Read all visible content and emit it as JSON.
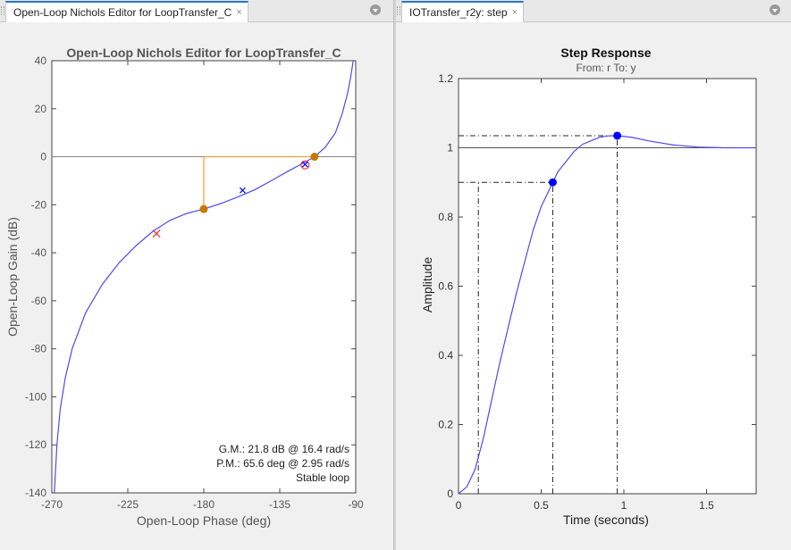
{
  "tabs": {
    "left_label": "Open-Loop Nichols Editor for LoopTransfer_C",
    "right_label": "IOTransfer_r2y: step",
    "close_glyph": "×"
  },
  "nichols": {
    "title": "Open-Loop Nichols Editor for LoopTransfer_C",
    "xlabel": "Open-Loop Phase (deg)",
    "ylabel": "Open-Loop Gain (dB)",
    "gm_text": "G.M.: 21.8 dB @ 16.4 rad/s",
    "pm_text": "P.M.: 65.6 deg @ 2.95 rad/s",
    "stable_text": "Stable loop"
  },
  "step": {
    "title": "Step Response",
    "subtitle": "From: r  To: y",
    "xlabel": "Time (seconds)",
    "ylabel": "Amplitude"
  },
  "colors": {
    "curve": "#4b4bf0",
    "margin": "#f0a030",
    "marker_orange": "#c87800",
    "pole_red": "#ff3030",
    "marker_blue": "#0000ff"
  },
  "chart_data": [
    {
      "type": "line",
      "name": "nichols",
      "xlim": [
        -270,
        -90
      ],
      "ylim": [
        -140,
        40
      ],
      "xticks": [
        -270,
        -225,
        -180,
        -135,
        -90
      ],
      "yticks": [
        -140,
        -120,
        -100,
        -80,
        -60,
        -40,
        -20,
        0,
        20,
        40
      ],
      "curve": [
        [
          -268.5,
          -140
        ],
        [
          -267,
          -120
        ],
        [
          -265,
          -105
        ],
        [
          -262,
          -92
        ],
        [
          -258,
          -80
        ],
        [
          -250,
          -65
        ],
        [
          -240,
          -53
        ],
        [
          -230,
          -44
        ],
        [
          -220,
          -37
        ],
        [
          -210,
          -31
        ],
        [
          -200,
          -26.5
        ],
        [
          -190,
          -23.6
        ],
        [
          -180,
          -21.8
        ],
        [
          -170,
          -19.5
        ],
        [
          -160,
          -16.8
        ],
        [
          -150,
          -13.8
        ],
        [
          -140,
          -10
        ],
        [
          -130,
          -6
        ],
        [
          -120,
          -2.2
        ],
        [
          -114.4,
          0
        ],
        [
          -108,
          4
        ],
        [
          -102,
          10
        ],
        [
          -98,
          18
        ],
        [
          -95,
          26
        ],
        [
          -93,
          33
        ],
        [
          -91.5,
          40
        ]
      ],
      "gain_margin": {
        "phase": -180,
        "gain": -21.8
      },
      "phase_margin": {
        "phase": -114.4,
        "gain": 0
      },
      "pole_markers": [
        [
          -208,
          -32
        ],
        [
          -120,
          -3.4
        ]
      ],
      "blue_x_markers": [
        [
          -157,
          -14
        ],
        [
          -120,
          -3.2
        ]
      ]
    },
    {
      "type": "line",
      "name": "step-response",
      "xlim": [
        0,
        1.8
      ],
      "ylim": [
        0,
        1.2
      ],
      "xticks": [
        0,
        0.5,
        1,
        1.5
      ],
      "yticks": [
        0,
        0.2,
        0.4,
        0.6,
        0.8,
        1.0,
        1.2
      ],
      "curve": [
        [
          0,
          0
        ],
        [
          0.05,
          0.02
        ],
        [
          0.1,
          0.07
        ],
        [
          0.15,
          0.16
        ],
        [
          0.2,
          0.27
        ],
        [
          0.25,
          0.38
        ],
        [
          0.3,
          0.48
        ],
        [
          0.35,
          0.58
        ],
        [
          0.4,
          0.67
        ],
        [
          0.45,
          0.76
        ],
        [
          0.5,
          0.83
        ],
        [
          0.55,
          0.88
        ],
        [
          0.6,
          0.93
        ],
        [
          0.65,
          0.96
        ],
        [
          0.7,
          0.99
        ],
        [
          0.75,
          1.01
        ],
        [
          0.8,
          1.02
        ],
        [
          0.85,
          1.03
        ],
        [
          0.9,
          1.034
        ],
        [
          0.96,
          1.035
        ],
        [
          1.05,
          1.03
        ],
        [
          1.15,
          1.02
        ],
        [
          1.3,
          1.008
        ],
        [
          1.45,
          1.002
        ],
        [
          1.6,
          1.0
        ],
        [
          1.8,
          1.0
        ]
      ],
      "rise_time": {
        "start": 0.12,
        "end": 0.57,
        "level_low": 0.1,
        "level_high": 0.9
      },
      "peak": {
        "t": 0.96,
        "amp": 1.035
      },
      "rise_marker": {
        "t": 0.57,
        "amp": 0.9
      },
      "final_value": 1.0
    }
  ]
}
